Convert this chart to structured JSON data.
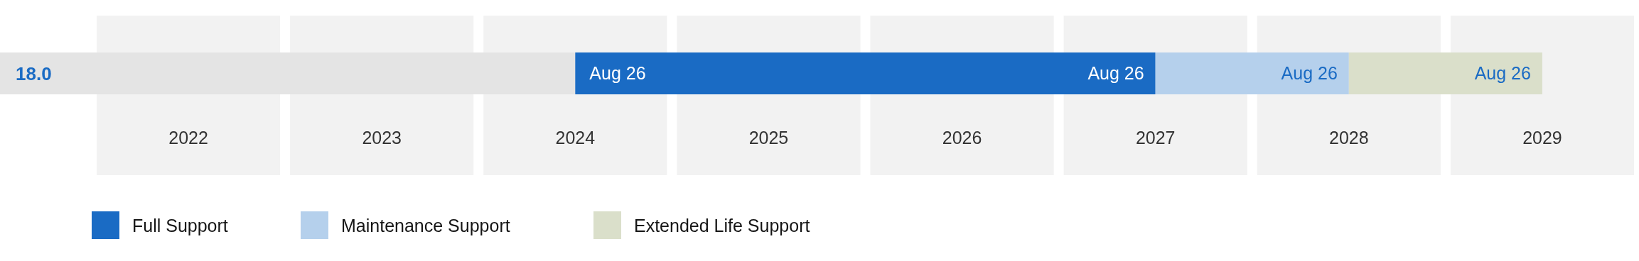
{
  "chart_data": {
    "type": "bar",
    "orientation": "horizontal",
    "categories": [
      "18.0"
    ],
    "series": [
      {
        "color": "#e4e4e4",
        "base": [
          2021.5
        ],
        "values": [
          2.5
        ]
      },
      {
        "name": "Full Support",
        "color": "#1a6bc4",
        "base": [
          2024
        ],
        "values": [
          3
        ]
      },
      {
        "name": "Maintenance Support",
        "color": "#b5d0ec",
        "base": [
          2027
        ],
        "values": [
          1
        ]
      },
      {
        "name": "Extended Life Support",
        "color": "#dadfca",
        "base": [
          2028
        ],
        "values": [
          1
        ]
      }
    ],
    "xlim": [
      2021.5,
      2029.5
    ],
    "xticks": [
      2022,
      2023,
      2024,
      2025,
      2026,
      2027,
      2028,
      2029
    ],
    "annotations": [
      {
        "text": "Aug 26",
        "x": 2024,
        "y": "18.0"
      },
      {
        "text": "Aug 26",
        "x": 2027,
        "y": "18.0"
      },
      {
        "text": "Aug 26",
        "x": 2028,
        "y": "18.0"
      },
      {
        "text": "Aug 26",
        "x": 2029,
        "y": "18.0"
      }
    ],
    "legend": "bottom left"
  }
}
